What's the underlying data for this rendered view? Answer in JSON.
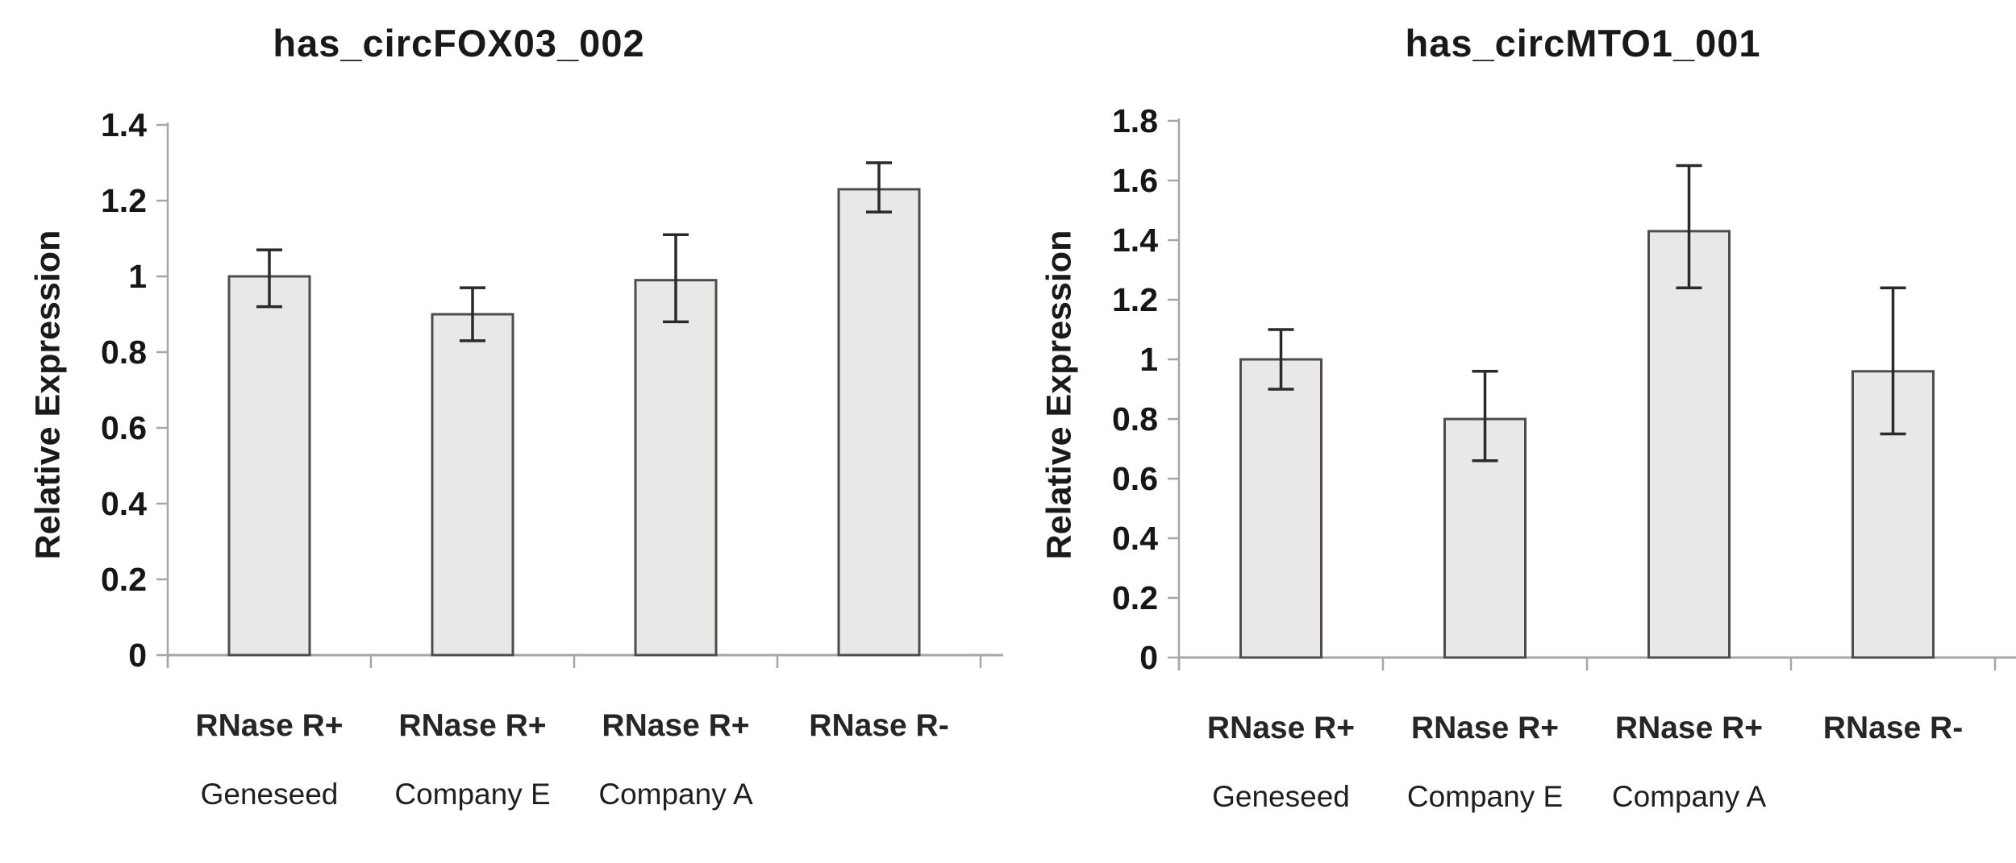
{
  "figure": {
    "background": "#ffffff",
    "description": "Two bar charts comparing relative expression of circular RNAs after RNase R treatment from different vendors"
  },
  "chart_data": [
    {
      "type": "bar",
      "title": "has_circFOX03_002",
      "ylabel": "Relative Expression",
      "xlabel": "",
      "ylim": [
        0,
        1.4
      ],
      "ytick_step": 0.2,
      "ytick_labels": [
        "0",
        "0.2",
        "0.4",
        "0.6",
        "0.8",
        "1",
        "1.2",
        "1.4"
      ],
      "categories": [
        "RNase R+",
        "RNase R+",
        "RNase R+",
        "RNase R-"
      ],
      "group_labels": [
        "Geneseed",
        "Company E",
        "Company A",
        ""
      ],
      "values": [
        1.0,
        0.9,
        0.99,
        1.23
      ],
      "error_plus": [
        0.07,
        0.07,
        0.12,
        0.07
      ],
      "error_minus": [
        0.08,
        0.07,
        0.11,
        0.06
      ],
      "grid": false,
      "legend": "none",
      "bar_fill": "#e9e8e7",
      "bar_stroke": "#4d4d4d",
      "error_color": "#2a2a2a",
      "axis_color": "#a6a6a6",
      "text_color": "#1a1a1a"
    },
    {
      "type": "bar",
      "title": "has_circMTO1_001",
      "ylabel": "Relative Expression",
      "xlabel": "",
      "ylim": [
        0,
        1.8
      ],
      "ytick_step": 0.2,
      "ytick_labels": [
        "0",
        "0.2",
        "0.4",
        "0.6",
        "0.8",
        "1",
        "1.2",
        "1.4",
        "1.6",
        "1.8"
      ],
      "categories": [
        "RNase R+",
        "RNase R+",
        "RNase R+",
        "RNase R-"
      ],
      "group_labels": [
        "Geneseed",
        "Company E",
        "Company A",
        ""
      ],
      "values": [
        1.0,
        0.8,
        1.43,
        0.96
      ],
      "error_plus": [
        0.1,
        0.16,
        0.22,
        0.28
      ],
      "error_minus": [
        0.1,
        0.14,
        0.19,
        0.21
      ],
      "grid": false,
      "legend": "none",
      "bar_fill": "#e9e8e7",
      "bar_stroke": "#4d4d4d",
      "error_color": "#2a2a2a",
      "axis_color": "#a6a6a6",
      "text_color": "#1a1a1a"
    }
  ]
}
